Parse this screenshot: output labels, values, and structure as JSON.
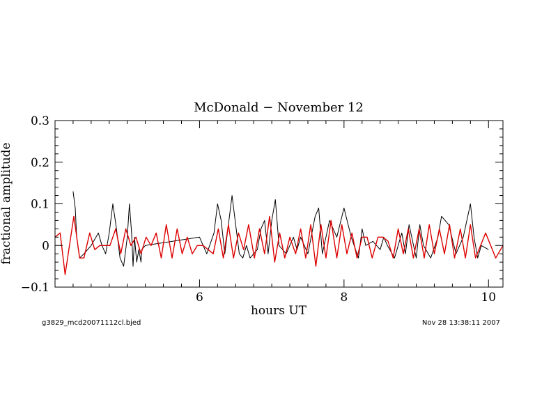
{
  "chart_data": {
    "type": "line",
    "title": "McDonald − November 12",
    "xlabel": "hours UT",
    "ylabel": "fractional amplitude",
    "xlim": [
      4.0,
      10.2
    ],
    "ylim": [
      -0.1,
      0.3
    ],
    "x_ticks": [
      6,
      8,
      10
    ],
    "x_tick_labels": [
      "6",
      "8",
      "10"
    ],
    "y_ticks": [
      -0.1,
      0,
      0.1,
      0.2,
      0.3
    ],
    "y_tick_labels": [
      "−0.1",
      "0",
      "0.1",
      "0.2",
      "0.3"
    ],
    "grid": false,
    "legend": "none",
    "series": [
      {
        "color": "#000000",
        "x": [
          4.25,
          4.28,
          4.3,
          4.34,
          4.4,
          4.5,
          4.6,
          4.65,
          4.7,
          4.75,
          4.8,
          4.85,
          4.9,
          4.95,
          5.0,
          5.03,
          5.06,
          5.08,
          5.1,
          5.13,
          5.16,
          5.19,
          5.2,
          5.25,
          6.0,
          6.05,
          6.1,
          6.2,
          6.25,
          6.3,
          6.35,
          6.4,
          6.45,
          6.5,
          6.55,
          6.6,
          6.65,
          6.7,
          6.8,
          6.85,
          6.9,
          6.95,
          7.0,
          7.05,
          7.1,
          7.2,
          7.3,
          7.35,
          7.4,
          7.5,
          7.6,
          7.65,
          7.7,
          7.8,
          7.9,
          8.0,
          8.1,
          8.2,
          8.25,
          8.3,
          8.4,
          8.5,
          8.55,
          8.6,
          8.7,
          8.8,
          8.85,
          8.9,
          9.0,
          9.05,
          9.1,
          9.2,
          9.3,
          9.35,
          9.45,
          9.55,
          9.65,
          9.75,
          9.8,
          9.85,
          9.9,
          10.0
        ],
        "y": [
          0.13,
          0.09,
          0.02,
          -0.03,
          -0.02,
          0.0,
          0.03,
          0.0,
          -0.02,
          0.03,
          0.1,
          0.04,
          -0.03,
          -0.05,
          0.02,
          0.1,
          0.03,
          -0.05,
          0.02,
          -0.04,
          -0.01,
          -0.04,
          -0.01,
          0.0,
          0.02,
          0.0,
          -0.02,
          0.03,
          0.1,
          0.06,
          -0.02,
          0.05,
          0.12,
          0.05,
          -0.02,
          -0.03,
          0.0,
          -0.03,
          -0.01,
          0.04,
          0.06,
          -0.02,
          0.06,
          0.11,
          0.0,
          -0.02,
          0.02,
          -0.01,
          0.02,
          -0.02,
          0.07,
          0.09,
          -0.02,
          0.06,
          0.02,
          0.09,
          0.02,
          -0.03,
          0.04,
          0.0,
          0.01,
          -0.01,
          0.02,
          0.0,
          -0.03,
          0.03,
          -0.02,
          0.05,
          -0.03,
          0.05,
          0.0,
          -0.03,
          0.02,
          0.07,
          0.05,
          -0.02,
          0.02,
          0.1,
          0.02,
          -0.03,
          0.0,
          -0.01
        ]
      },
      {
        "color": "#dd0000",
        "x": [
          4.0,
          4.07,
          4.14,
          4.2,
          4.26,
          4.34,
          4.4,
          4.48,
          4.55,
          4.62,
          4.69,
          4.76,
          4.84,
          4.91,
          4.98,
          5.05,
          5.12,
          5.19,
          5.26,
          5.33,
          5.4,
          5.47,
          5.54,
          5.62,
          5.69,
          5.76,
          5.83,
          5.9,
          5.97,
          6.05,
          6.12,
          6.19,
          6.26,
          6.33,
          6.4,
          6.47,
          6.54,
          6.61,
          6.68,
          6.76,
          6.83,
          6.9,
          6.97,
          7.04,
          7.11,
          7.18,
          7.25,
          7.33,
          7.4,
          7.47,
          7.54,
          7.61,
          7.68,
          7.75,
          7.82,
          7.9,
          7.97,
          8.04,
          8.11,
          8.18,
          8.25,
          8.32,
          8.39,
          8.47,
          8.54,
          8.61,
          8.68,
          8.75,
          8.82,
          8.89,
          8.96,
          9.04,
          9.11,
          9.18,
          9.25,
          9.32,
          9.39,
          9.46,
          9.53,
          9.61,
          9.68,
          9.75,
          9.82,
          9.89,
          9.96,
          10.03,
          10.1,
          10.2
        ],
        "y": [
          0.02,
          0.03,
          -0.07,
          0.0,
          0.07,
          -0.03,
          -0.03,
          0.03,
          -0.01,
          0.0,
          0.0,
          0.0,
          0.04,
          -0.02,
          0.04,
          0.0,
          0.02,
          -0.02,
          0.02,
          0.0,
          0.03,
          -0.03,
          0.05,
          -0.03,
          0.04,
          -0.02,
          0.02,
          -0.02,
          0.0,
          0.0,
          -0.01,
          -0.02,
          0.04,
          -0.03,
          0.05,
          -0.03,
          0.03,
          -0.01,
          0.05,
          -0.03,
          0.04,
          -0.02,
          0.07,
          -0.04,
          0.03,
          -0.03,
          0.02,
          -0.02,
          0.04,
          -0.03,
          0.05,
          -0.05,
          0.05,
          -0.03,
          0.06,
          -0.03,
          0.05,
          -0.02,
          0.03,
          -0.03,
          0.02,
          0.02,
          -0.03,
          0.02,
          0.02,
          0.01,
          -0.03,
          0.04,
          -0.02,
          0.04,
          -0.03,
          0.04,
          -0.03,
          0.05,
          -0.02,
          0.04,
          -0.02,
          0.05,
          -0.03,
          0.04,
          -0.03,
          0.05,
          -0.03,
          0.0,
          0.03,
          0.0,
          -0.03,
          0.0
        ]
      }
    ]
  },
  "footer": {
    "left": "g3829_mcd20071112cl.bjed",
    "right": "Nov 28 13:38:11 2007"
  }
}
